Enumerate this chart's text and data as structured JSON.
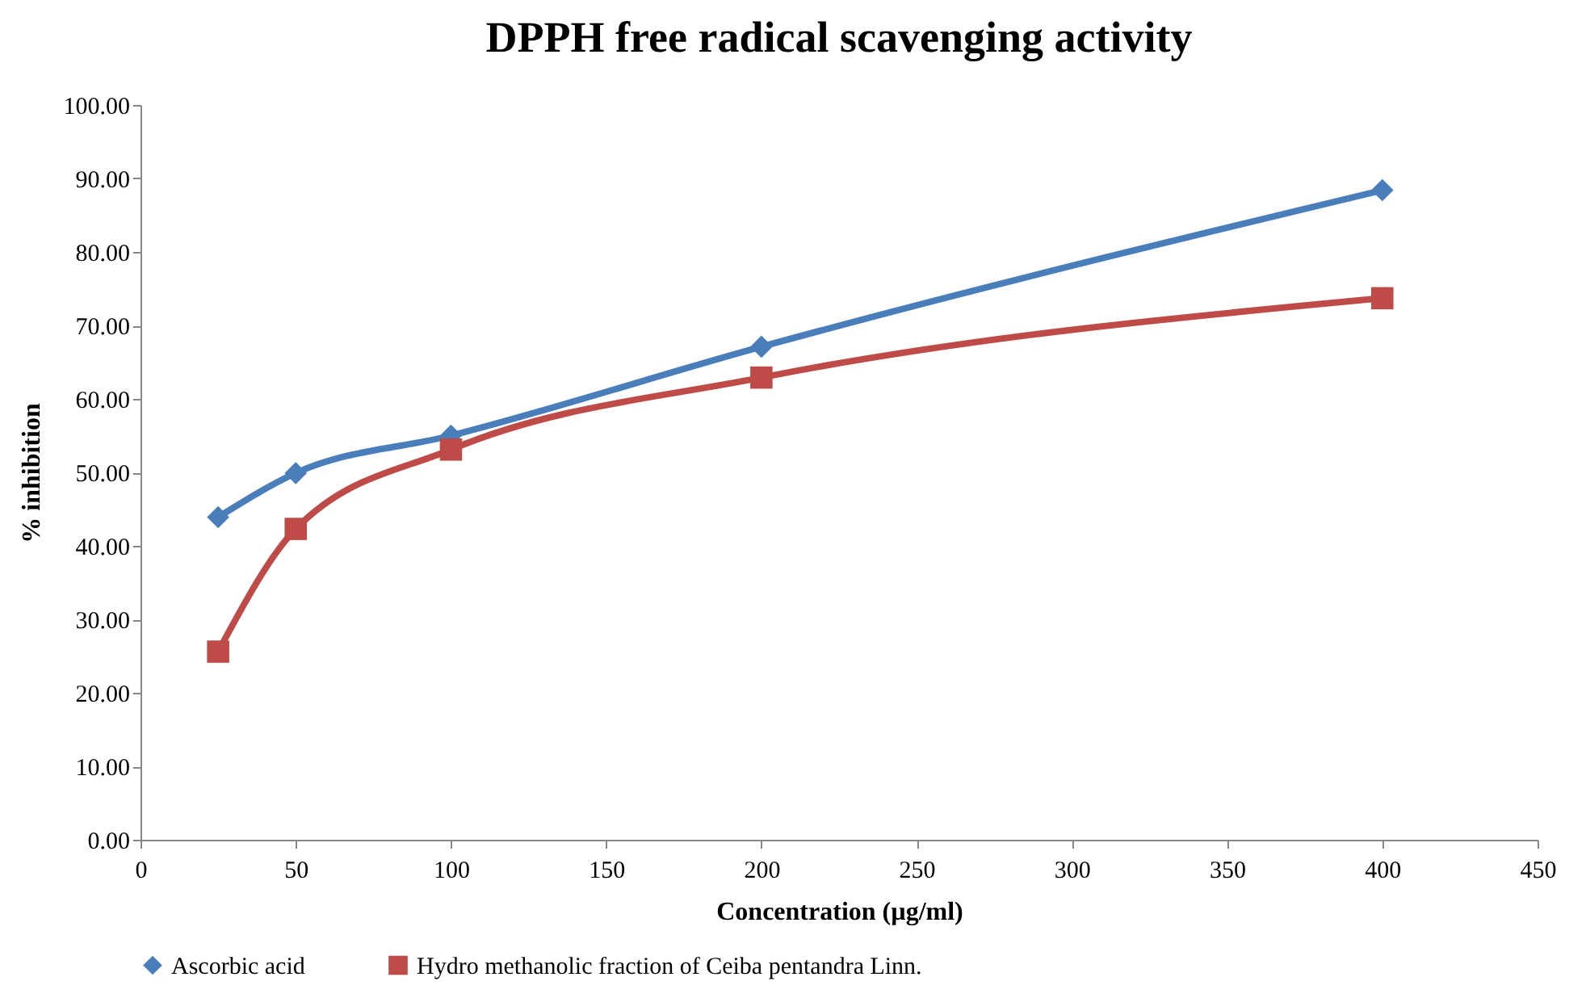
{
  "chart_data": {
    "type": "line",
    "title": "DPPH free radical scavenging activity",
    "xlabel": "Concentration (µg/ml)",
    "ylabel": "% inhibition",
    "x": [
      25,
      50,
      100,
      200,
      400
    ],
    "series": [
      {
        "name": "Ascorbic acid",
        "color": "#4a7ebb",
        "marker": "diamond",
        "values": [
          43.9,
          49.9,
          55.0,
          67.1,
          88.4
        ]
      },
      {
        "name": "Hydro methanolic fraction of Ceiba pentandra Linn.",
        "color": "#be4b48",
        "marker": "square",
        "values": [
          25.6,
          42.3,
          53.1,
          62.9,
          73.7
        ]
      }
    ],
    "xlim": [
      0,
      450
    ],
    "xticks": [
      0,
      50,
      100,
      150,
      200,
      250,
      300,
      350,
      400,
      450
    ],
    "ylim": [
      0,
      100
    ],
    "yticks": [
      {
        "value": 0,
        "label": "0.00"
      },
      {
        "value": 10,
        "label": "10.00"
      },
      {
        "value": 20,
        "label": "20.00"
      },
      {
        "value": 30,
        "label": "30.00"
      },
      {
        "value": 40,
        "label": "40.00"
      },
      {
        "value": 50,
        "label": "50.00"
      },
      {
        "value": 60,
        "label": "60.00"
      },
      {
        "value": 70,
        "label": "70.00"
      },
      {
        "value": 80,
        "label": "80.00"
      },
      {
        "value": 90,
        "label": "90.00"
      },
      {
        "value": 100,
        "label": "100.00"
      }
    ],
    "grid": false,
    "legend": "bottom",
    "line_style": "solid"
  }
}
